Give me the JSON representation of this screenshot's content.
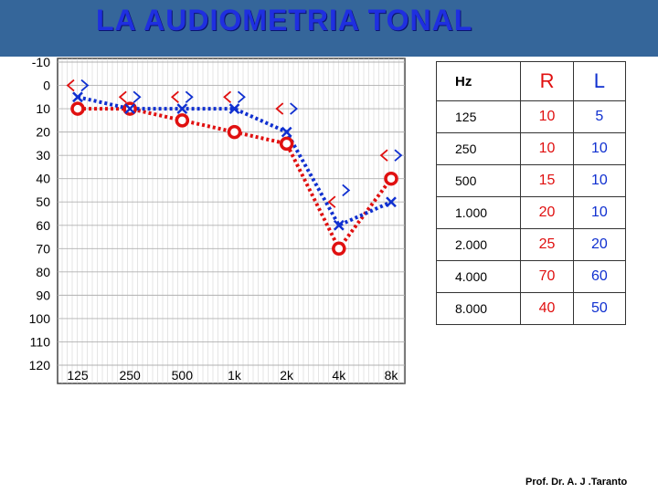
{
  "title": "LA AUDIOMETRIA TONAL",
  "footer": "Prof. Dr. A. J .Taranto",
  "colors": {
    "right_ear": "#e01010",
    "left_ear": "#1030d0",
    "title_bar": "#35669a"
  },
  "chart_data": {
    "type": "line",
    "xlabel": "",
    "ylabel": "",
    "categories": [
      "125",
      "250",
      "500",
      "1k",
      "2k",
      "4k",
      "8k"
    ],
    "y_ticks": [
      -10,
      0,
      10,
      20,
      30,
      40,
      50,
      60,
      70,
      80,
      90,
      100,
      110,
      120
    ],
    "ylim": [
      -10,
      120
    ],
    "y_inverted": true,
    "grid": true,
    "series": [
      {
        "marker": "circle",
        "line": "dotted",
        "color": "#e01010",
        "values": [
          10,
          10,
          15,
          20,
          25,
          70,
          40
        ]
      },
      {
        "marker": "x",
        "line": "dotted",
        "color": "#1030d0",
        "values": [
          5,
          10,
          10,
          10,
          20,
          60,
          50
        ]
      },
      {
        "marker": "right-chevron",
        "color": "#1030d0",
        "values": [
          0,
          5,
          5,
          5,
          10,
          45,
          30
        ]
      },
      {
        "marker": "left-chevron",
        "color": "#e01010",
        "values": [
          0,
          5,
          5,
          5,
          10,
          50,
          30
        ]
      }
    ]
  },
  "table": {
    "headers": {
      "hz": "Hz",
      "r": "R",
      "l": "L"
    },
    "rows": [
      {
        "hz": "125",
        "r": "10",
        "l": "5"
      },
      {
        "hz": "250",
        "r": "10",
        "l": "10"
      },
      {
        "hz": "500",
        "r": "15",
        "l": "10"
      },
      {
        "hz": "1.000",
        "r": "20",
        "l": "10"
      },
      {
        "hz": "2.000",
        "r": "25",
        "l": "20"
      },
      {
        "hz": "4.000",
        "r": "70",
        "l": "60"
      },
      {
        "hz": "8.000",
        "r": "40",
        "l": "50"
      }
    ]
  }
}
